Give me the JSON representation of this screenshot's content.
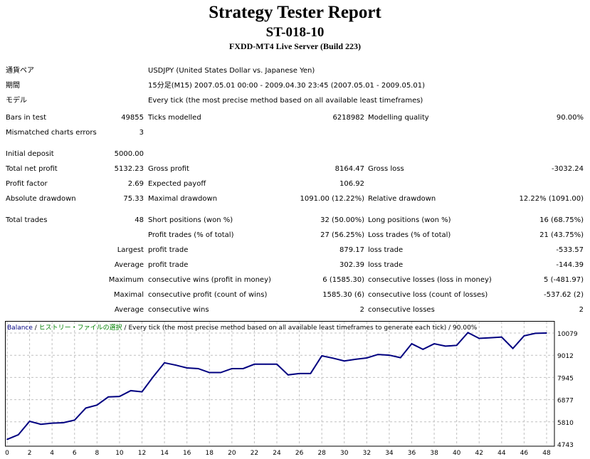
{
  "title": "Strategy Tester Report",
  "expert": "ST-018-10",
  "server": "FXDD-MT4 Live Server (Build 223)",
  "info": [
    {
      "label": "通貨ペア",
      "value": "USDJPY (United States Dollar vs. Japanese Yen)"
    },
    {
      "label": "期間",
      "value": "15分足(M15) 2007.05.01 00:00 - 2009.04.30 23:45 (2007.05.01 - 2009.05.01)"
    },
    {
      "label": "モデル",
      "value": "Every tick (the most precise method based on all available least timeframes)"
    }
  ],
  "rows": [
    [
      "Bars in test",
      "49855",
      "Ticks modelled",
      "6218982",
      "Modelling quality",
      "90.00%"
    ],
    [
      "Mismatched charts errors",
      "3",
      "",
      "",
      "",
      ""
    ],
    [
      "Initial deposit",
      "5000.00",
      "",
      "",
      "",
      ""
    ],
    [
      "Total net profit",
      "5132.23",
      "Gross profit",
      "8164.47",
      "Gross loss",
      "-3032.24"
    ],
    [
      "Profit factor",
      "2.69",
      "Expected payoff",
      "106.92",
      "",
      ""
    ],
    [
      "Absolute drawdown",
      "75.33",
      "Maximal drawdown",
      "1091.00 (12.22%)",
      "Relative drawdown",
      "12.22% (1091.00)"
    ],
    [
      "Total trades",
      "48",
      "Short positions (won %)",
      "32 (50.00%)",
      "Long positions (won %)",
      "16 (68.75%)"
    ],
    [
      "",
      "",
      "Profit trades (% of total)",
      "27 (56.25%)",
      "Loss trades (% of total)",
      "21 (43.75%)"
    ],
    [
      "",
      "Largest",
      "profit trade",
      "879.17",
      "loss trade",
      "-533.57"
    ],
    [
      "",
      "Average",
      "profit trade",
      "302.39",
      "loss trade",
      "-144.39"
    ],
    [
      "",
      "Maximum",
      "consecutive wins (profit in money)",
      "6 (1585.30)",
      "consecutive losses (loss in money)",
      "5 (-481.97)"
    ],
    [
      "",
      "Maximal",
      "consecutive profit (count of wins)",
      "1585.30 (6)",
      "consecutive loss (count of losses)",
      "-537.62 (2)"
    ],
    [
      "",
      "Average",
      "consecutive wins",
      "2",
      "consecutive losses",
      "2"
    ]
  ],
  "chart_data": {
    "type": "line",
    "legend": {
      "series": "Balance",
      "sep1": " / ",
      "file": "ヒストリー・ファイルの選択",
      "rest": " / Every tick (the most precise method based on all available least timeframes to generate each tick) / 90.00%"
    },
    "x": [
      0,
      1,
      2,
      3,
      4,
      5,
      6,
      7,
      8,
      9,
      10,
      11,
      12,
      13,
      14,
      15,
      16,
      17,
      18,
      19,
      20,
      21,
      22,
      23,
      24,
      25,
      26,
      27,
      28,
      29,
      30,
      31,
      32,
      33,
      34,
      35,
      36,
      37,
      38,
      39,
      40,
      41,
      42,
      43,
      44,
      45,
      46,
      47,
      48
    ],
    "values": [
      4966,
      5190,
      5837,
      5692,
      5747,
      5770,
      5893,
      6473,
      6618,
      7008,
      7031,
      7310,
      7254,
      7979,
      8649,
      8537,
      8403,
      8370,
      8180,
      8180,
      8370,
      8370,
      8582,
      8582,
      8582,
      8068,
      8135,
      8135,
      8983,
      8871,
      8738,
      8816,
      8883,
      9050,
      9016,
      8894,
      9564,
      9296,
      9564,
      9452,
      9486,
      10100,
      9821,
      9854,
      9887,
      9340,
      9944,
      10067,
      10079
    ],
    "yticks": [
      "10079",
      "9012",
      "7945",
      "6877",
      "5810",
      "4743"
    ],
    "ylim": [
      4743,
      10079
    ],
    "xticks": [
      "0",
      "2",
      "4",
      "6",
      "8",
      "10",
      "12",
      "14",
      "16",
      "18",
      "20",
      "22",
      "24",
      "26",
      "28",
      "30",
      "32",
      "34",
      "36",
      "38",
      "40",
      "42",
      "44",
      "46",
      "48"
    ],
    "colors": {
      "line": "#000080",
      "legend_file": "#008000",
      "grid": "#c0c0c0"
    }
  }
}
